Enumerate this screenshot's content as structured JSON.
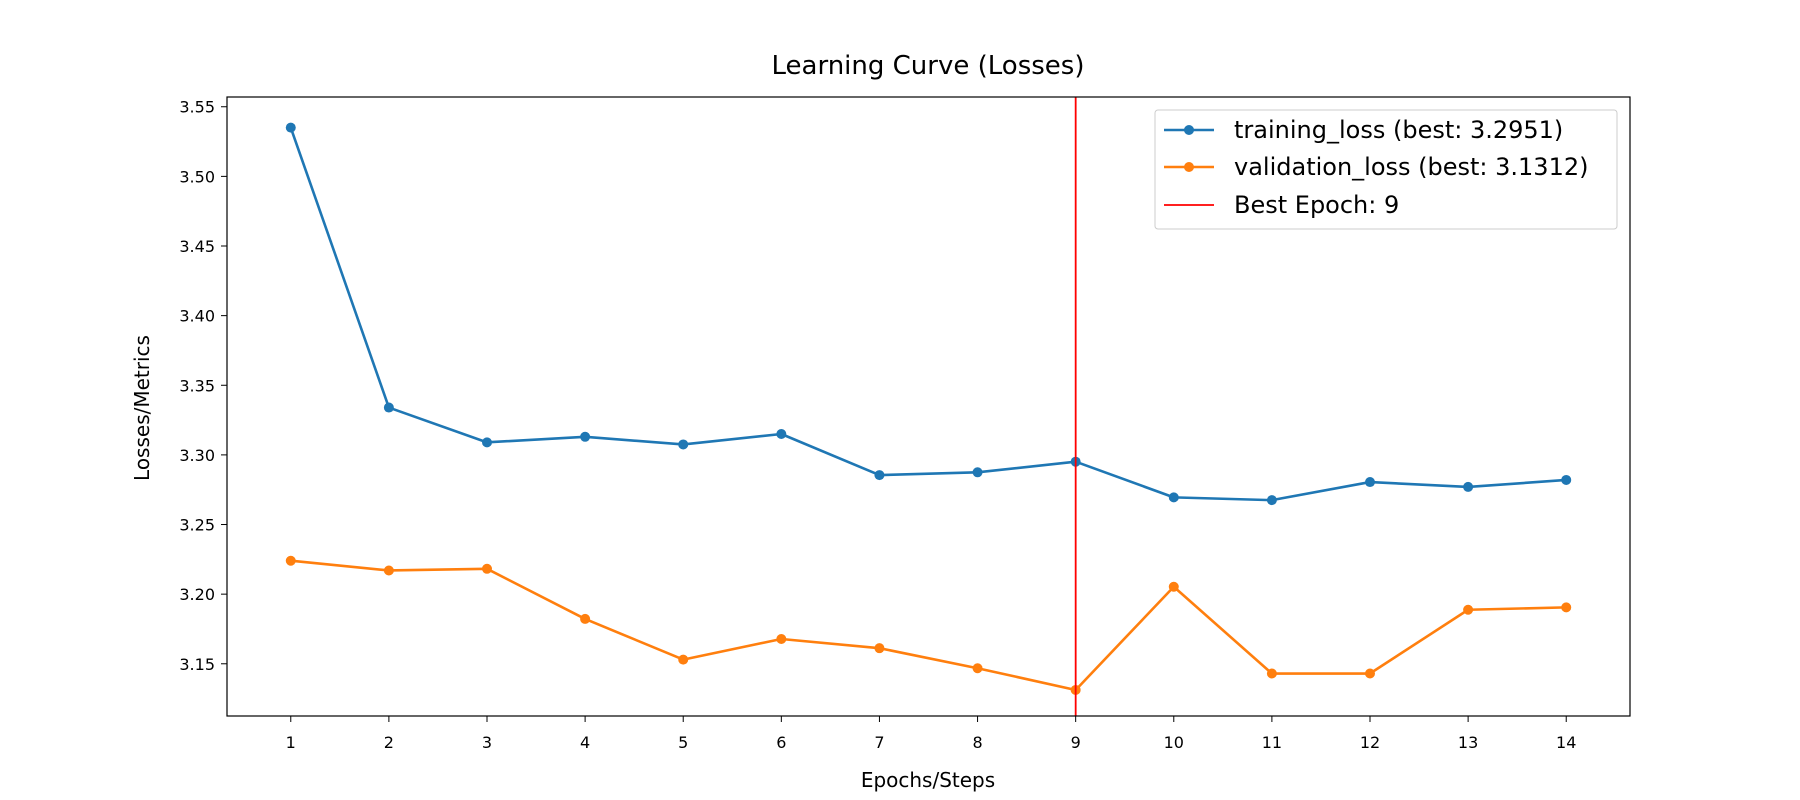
{
  "chart_data": {
    "type": "line",
    "title": "Learning Curve (Losses)",
    "xlabel": "Epochs/Steps",
    "ylabel": "Losses/Metrics",
    "x": [
      1,
      2,
      3,
      4,
      5,
      6,
      7,
      8,
      9,
      10,
      11,
      12,
      13,
      14
    ],
    "xticks": [
      "1",
      "2",
      "3",
      "4",
      "5",
      "6",
      "7",
      "8",
      "9",
      "10",
      "11",
      "12",
      "13",
      "14"
    ],
    "yticks": [
      "3.15",
      "3.20",
      "3.25",
      "3.30",
      "3.35",
      "3.40",
      "3.45",
      "3.50",
      "3.55"
    ],
    "xlim": [
      0.35,
      14.65
    ],
    "ylim": [
      3.1125,
      3.557
    ],
    "grid": false,
    "legend_position": "top-right",
    "series": [
      {
        "name": "training_loss (best: 3.2951)",
        "color": "#1f77b4",
        "values": [
          3.535,
          3.334,
          3.309,
          3.313,
          3.3075,
          3.315,
          3.2855,
          3.2875,
          3.2951,
          3.2695,
          3.2675,
          3.2805,
          3.277,
          3.282
        ]
      },
      {
        "name": "validation_loss (best: 3.1312)",
        "color": "#ff7f0e",
        "values": [
          3.224,
          3.217,
          3.2182,
          3.1822,
          3.153,
          3.1678,
          3.1612,
          3.1468,
          3.1312,
          3.2053,
          3.143,
          3.143,
          3.1888,
          3.1905
        ]
      }
    ],
    "vertical_line": {
      "label": "Best Epoch: 9",
      "x": 9,
      "color": "#ff0000"
    }
  }
}
